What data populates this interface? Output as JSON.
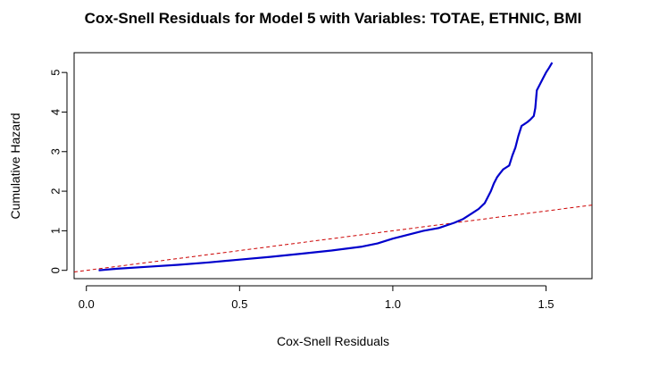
{
  "chart_data": {
    "type": "line",
    "title": "Cox-Snell Residuals for Model 5 with Variables: TOTAE, ETHNIC, BMI",
    "xlabel": "Cox-Snell Residuals",
    "ylabel": "Cumulative Hazard",
    "xlim": [
      -0.04,
      1.65
    ],
    "ylim": [
      -0.21,
      5.5
    ],
    "xticks": [
      0.0,
      0.5,
      1.0,
      1.5
    ],
    "xtick_labels": [
      "0.0",
      "0.5",
      "1.0",
      "1.5"
    ],
    "yticks": [
      0,
      1,
      2,
      3,
      4,
      5
    ],
    "ytick_labels": [
      "0",
      "1",
      "2",
      "3",
      "4",
      "5"
    ],
    "grid": false,
    "legend": "none",
    "series": [
      {
        "style": "solid",
        "color": "#0000cc",
        "x": [
          0.04,
          0.1,
          0.2,
          0.3,
          0.4,
          0.5,
          0.6,
          0.7,
          0.8,
          0.9,
          0.95,
          1.0,
          1.05,
          1.1,
          1.15,
          1.2,
          1.23,
          1.26,
          1.28,
          1.3,
          1.31,
          1.32,
          1.33,
          1.34,
          1.35,
          1.36,
          1.37,
          1.38,
          1.39,
          1.4,
          1.41,
          1.42,
          1.43,
          1.44,
          1.45,
          1.46,
          1.465,
          1.47,
          1.48,
          1.49,
          1.5,
          1.51,
          1.52
        ],
        "y": [
          0.0,
          0.04,
          0.09,
          0.14,
          0.2,
          0.27,
          0.34,
          0.42,
          0.5,
          0.6,
          0.68,
          0.8,
          0.9,
          1.0,
          1.07,
          1.2,
          1.3,
          1.45,
          1.55,
          1.7,
          1.85,
          2.0,
          2.2,
          2.35,
          2.45,
          2.55,
          2.6,
          2.65,
          2.9,
          3.1,
          3.4,
          3.65,
          3.7,
          3.75,
          3.82,
          3.9,
          4.1,
          4.55,
          4.7,
          4.85,
          5.0,
          5.12,
          5.25
        ]
      },
      {
        "style": "dashed",
        "color": "#cc0000",
        "x": [
          -0.04,
          1.65
        ],
        "y": [
          -0.04,
          1.65
        ]
      }
    ]
  }
}
